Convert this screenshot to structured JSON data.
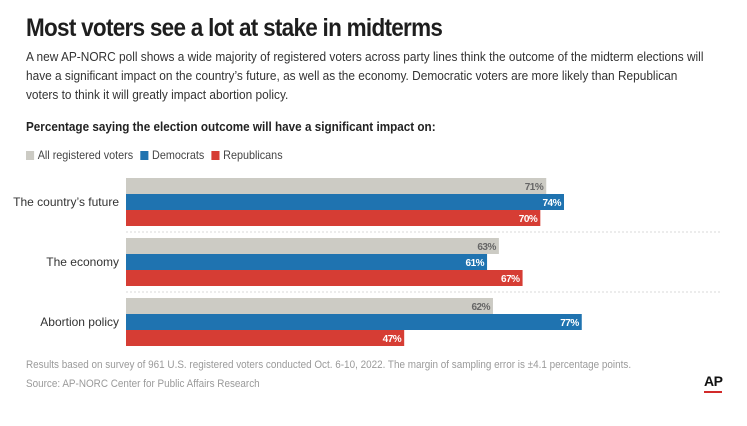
{
  "title": "Most voters see a lot at stake in midterms",
  "subtitle": "A new AP-NORC poll shows a wide majority of registered voters across party lines think the outcome of the midterm elections will have a significant impact on the country’s future, as well as the economy. Democratic voters are more likely than Republican voters to think it will greatly impact abortion policy.",
  "note": "Results based on survey of 961 U.S. registered voters conducted Oct. 6-10, 2022. The margin of sampling error is ±4.1 percentage points.",
  "source": "Source: AP-NORC Center for Public Affairs Research",
  "logo": "AP",
  "colors": {
    "all": "#cccbc4",
    "democrats": "#1f73b0",
    "republicans": "#d63d34",
    "logo_accent": "#d22a2a"
  },
  "chart_data": {
    "type": "bar",
    "orientation": "horizontal",
    "title": "Percentage saying the election outcome will have a significant impact on:",
    "categories": [
      "The country’s future",
      "The economy",
      "Abortion policy"
    ],
    "series": [
      {
        "name": "All registered voters",
        "values": [
          71,
          63,
          62
        ],
        "labels": [
          "71%",
          "63%",
          "62%"
        ]
      },
      {
        "name": "Democrats",
        "values": [
          74,
          61,
          77
        ],
        "labels": [
          "74%",
          "61%",
          "77%"
        ]
      },
      {
        "name": "Republicans",
        "values": [
          70,
          67,
          47
        ],
        "labels": [
          "70%",
          "67%",
          "47%"
        ]
      }
    ],
    "xlim": [
      0,
      100
    ],
    "legend": "top-left",
    "grid": false
  }
}
